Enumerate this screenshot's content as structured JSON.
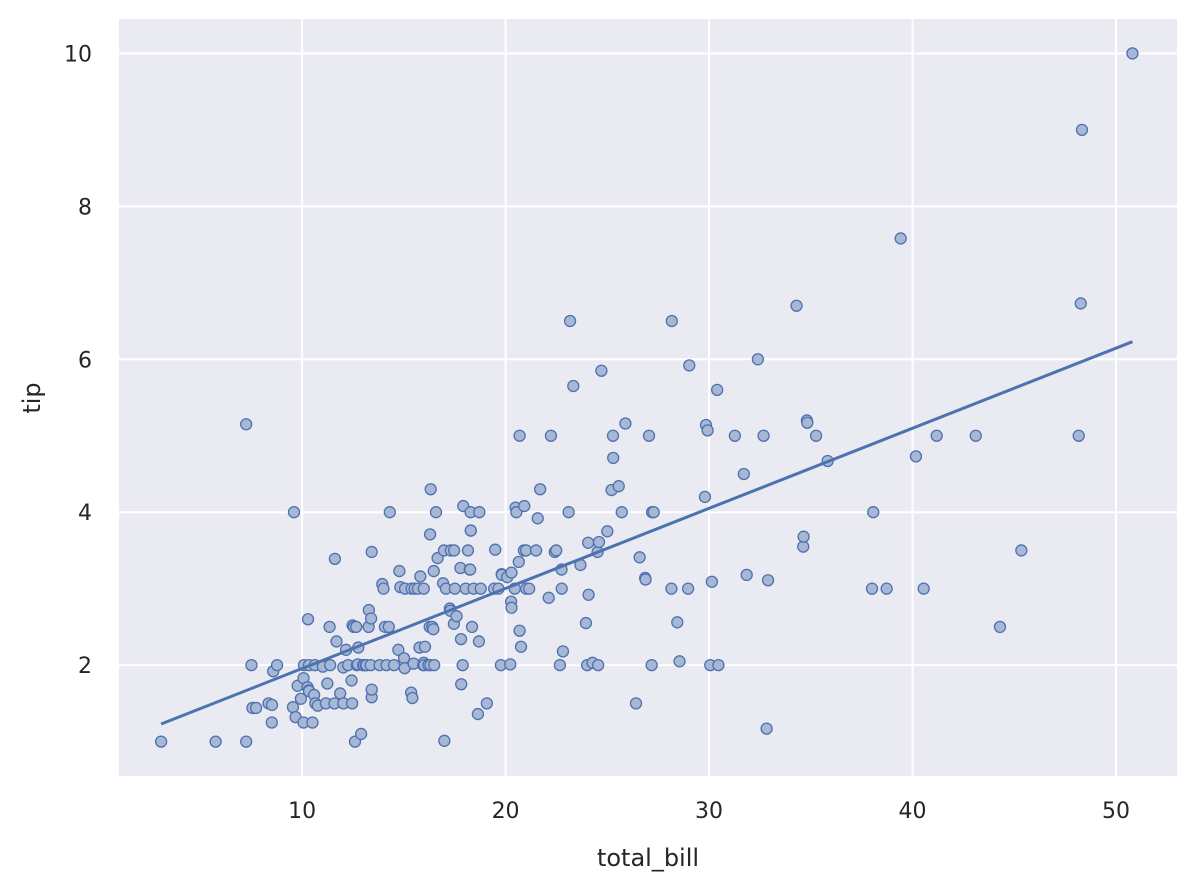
{
  "chart_data": {
    "type": "scatter",
    "xlabel": "total_bill",
    "ylabel": "tip",
    "xlim": [
      1.0,
      53.0
    ],
    "ylim": [
      0.55,
      10.45
    ],
    "x_ticks": [
      10,
      20,
      30,
      40,
      50
    ],
    "y_ticks": [
      2,
      4,
      6,
      8,
      10
    ],
    "grid": true,
    "background_color": "#EAEAF2",
    "grid_color": "#FFFFFF",
    "series_color": "#4C72B0",
    "marker_fill": "#A8B7D4",
    "regression_line": {
      "x": [
        3.07,
        50.81
      ],
      "y": [
        1.23,
        6.23
      ]
    },
    "points": [
      [
        3.07,
        1.0
      ],
      [
        5.75,
        1.0
      ],
      [
        7.25,
        1.0
      ],
      [
        7.25,
        5.15
      ],
      [
        7.51,
        2.0
      ],
      [
        7.56,
        1.44
      ],
      [
        7.74,
        1.44
      ],
      [
        8.35,
        1.5
      ],
      [
        8.51,
        1.25
      ],
      [
        8.52,
        1.48
      ],
      [
        8.58,
        1.92
      ],
      [
        8.77,
        2.0
      ],
      [
        9.55,
        1.45
      ],
      [
        9.6,
        4.0
      ],
      [
        9.68,
        1.32
      ],
      [
        9.78,
        1.73
      ],
      [
        9.94,
        1.56
      ],
      [
        10.07,
        1.83
      ],
      [
        10.07,
        1.25
      ],
      [
        10.09,
        2.0
      ],
      [
        10.27,
        1.71
      ],
      [
        10.29,
        2.6
      ],
      [
        10.33,
        1.67
      ],
      [
        10.34,
        1.66
      ],
      [
        10.34,
        2.0
      ],
      [
        10.51,
        1.25
      ],
      [
        10.59,
        1.61
      ],
      [
        10.63,
        2.0
      ],
      [
        10.65,
        1.5
      ],
      [
        10.77,
        1.47
      ],
      [
        11.02,
        1.98
      ],
      [
        11.17,
        1.5
      ],
      [
        11.24,
        1.76
      ],
      [
        11.35,
        2.5
      ],
      [
        11.38,
        2.0
      ],
      [
        11.59,
        1.5
      ],
      [
        11.61,
        3.39
      ],
      [
        11.69,
        2.31
      ],
      [
        11.87,
        1.63
      ],
      [
        12.02,
        1.97
      ],
      [
        12.03,
        1.5
      ],
      [
        12.16,
        2.2
      ],
      [
        12.26,
        2.0
      ],
      [
        12.43,
        1.8
      ],
      [
        12.46,
        1.5
      ],
      [
        12.48,
        2.52
      ],
      [
        12.54,
        2.5
      ],
      [
        12.6,
        1.0
      ],
      [
        12.66,
        2.5
      ],
      [
        12.69,
        2.0
      ],
      [
        12.74,
        2.01
      ],
      [
        12.76,
        2.23
      ],
      [
        12.9,
        1.1
      ],
      [
        13.0,
        2.0
      ],
      [
        13.03,
        2.0
      ],
      [
        13.13,
        2.0
      ],
      [
        13.16,
        2.0
      ],
      [
        13.27,
        2.5
      ],
      [
        13.28,
        2.72
      ],
      [
        13.37,
        2.0
      ],
      [
        13.39,
        2.61
      ],
      [
        13.42,
        3.48
      ],
      [
        13.42,
        1.58
      ],
      [
        13.42,
        1.68
      ],
      [
        13.81,
        2.0
      ],
      [
        13.94,
        3.06
      ],
      [
        14.0,
        3.0
      ],
      [
        14.07,
        2.5
      ],
      [
        14.15,
        2.0
      ],
      [
        14.26,
        2.5
      ],
      [
        14.31,
        4.0
      ],
      [
        14.52,
        2.0
      ],
      [
        14.73,
        2.2
      ],
      [
        14.78,
        3.23
      ],
      [
        14.83,
        3.02
      ],
      [
        15.01,
        2.09
      ],
      [
        15.04,
        1.96
      ],
      [
        15.06,
        3.0
      ],
      [
        15.36,
        1.64
      ],
      [
        15.38,
        3.0
      ],
      [
        15.42,
        1.57
      ],
      [
        15.48,
        2.02
      ],
      [
        15.53,
        3.0
      ],
      [
        15.69,
        3.0
      ],
      [
        15.77,
        2.23
      ],
      [
        15.81,
        3.16
      ],
      [
        15.95,
        2.0
      ],
      [
        15.98,
        2.03
      ],
      [
        15.98,
        3.0
      ],
      [
        16.0,
        2.0
      ],
      [
        16.04,
        2.24
      ],
      [
        16.21,
        2.0
      ],
      [
        16.27,
        2.5
      ],
      [
        16.29,
        3.71
      ],
      [
        16.31,
        2.0
      ],
      [
        16.32,
        4.3
      ],
      [
        16.4,
        2.5
      ],
      [
        16.45,
        2.47
      ],
      [
        16.47,
        3.23
      ],
      [
        16.49,
        2.0
      ],
      [
        16.58,
        4.0
      ],
      [
        16.66,
        3.4
      ],
      [
        16.93,
        3.07
      ],
      [
        16.97,
        3.5
      ],
      [
        16.99,
        1.01
      ],
      [
        17.07,
        3.0
      ],
      [
        17.26,
        2.74
      ],
      [
        17.29,
        2.71
      ],
      [
        17.31,
        3.5
      ],
      [
        17.46,
        2.54
      ],
      [
        17.47,
        3.5
      ],
      [
        17.51,
        3.0
      ],
      [
        17.59,
        2.64
      ],
      [
        17.78,
        3.27
      ],
      [
        17.81,
        2.34
      ],
      [
        17.82,
        1.75
      ],
      [
        17.89,
        2.0
      ],
      [
        17.92,
        4.08
      ],
      [
        18.04,
        3.0
      ],
      [
        18.15,
        3.5
      ],
      [
        18.24,
        3.25
      ],
      [
        18.26,
        3.25
      ],
      [
        18.28,
        4.0
      ],
      [
        18.29,
        3.76
      ],
      [
        18.29,
        3.76
      ],
      [
        18.35,
        2.5
      ],
      [
        18.43,
        3.0
      ],
      [
        18.64,
        1.36
      ],
      [
        18.69,
        2.31
      ],
      [
        18.71,
        4.0
      ],
      [
        18.78,
        3.0
      ],
      [
        19.08,
        1.5
      ],
      [
        19.44,
        3.0
      ],
      [
        19.49,
        3.51
      ],
      [
        19.65,
        3.0
      ],
      [
        19.77,
        2.0
      ],
      [
        19.81,
        3.19
      ],
      [
        19.82,
        3.18
      ],
      [
        20.08,
        3.15
      ],
      [
        20.23,
        2.01
      ],
      [
        20.27,
        2.83
      ],
      [
        20.29,
        2.75
      ],
      [
        20.29,
        3.21
      ],
      [
        20.45,
        3.0
      ],
      [
        20.49,
        4.06
      ],
      [
        20.53,
        4.0
      ],
      [
        20.65,
        3.35
      ],
      [
        20.69,
        2.45
      ],
      [
        20.69,
        5.0
      ],
      [
        20.76,
        2.24
      ],
      [
        20.9,
        3.5
      ],
      [
        20.92,
        4.08
      ],
      [
        21.01,
        3.0
      ],
      [
        21.01,
        3.5
      ],
      [
        21.16,
        3.0
      ],
      [
        21.5,
        3.5
      ],
      [
        21.58,
        3.92
      ],
      [
        21.7,
        4.3
      ],
      [
        22.12,
        2.88
      ],
      [
        22.23,
        5.0
      ],
      [
        22.42,
        3.48
      ],
      [
        22.49,
        3.5
      ],
      [
        22.67,
        2.0
      ],
      [
        22.75,
        3.25
      ],
      [
        22.76,
        3.0
      ],
      [
        22.82,
        2.18
      ],
      [
        23.1,
        4.0
      ],
      [
        23.17,
        6.5
      ],
      [
        23.33,
        5.65
      ],
      [
        23.68,
        3.31
      ],
      [
        23.95,
        2.55
      ],
      [
        24.01,
        2.0
      ],
      [
        24.06,
        3.6
      ],
      [
        24.08,
        2.92
      ],
      [
        24.27,
        2.03
      ],
      [
        24.52,
        3.48
      ],
      [
        24.55,
        2.0
      ],
      [
        24.59,
        3.61
      ],
      [
        24.71,
        5.85
      ],
      [
        25.0,
        3.75
      ],
      [
        25.21,
        4.29
      ],
      [
        25.28,
        5.0
      ],
      [
        25.29,
        4.71
      ],
      [
        25.56,
        4.34
      ],
      [
        25.71,
        4.0
      ],
      [
        25.89,
        5.16
      ],
      [
        26.41,
        1.5
      ],
      [
        26.59,
        3.41
      ],
      [
        26.86,
        3.14
      ],
      [
        26.88,
        3.12
      ],
      [
        27.05,
        5.0
      ],
      [
        27.18,
        2.0
      ],
      [
        27.2,
        4.0
      ],
      [
        27.28,
        4.0
      ],
      [
        28.15,
        3.0
      ],
      [
        28.17,
        6.5
      ],
      [
        28.44,
        2.56
      ],
      [
        28.55,
        2.05
      ],
      [
        28.97,
        3.0
      ],
      [
        29.03,
        5.92
      ],
      [
        29.8,
        4.2
      ],
      [
        29.85,
        5.14
      ],
      [
        29.93,
        5.07
      ],
      [
        30.06,
        2.0
      ],
      [
        30.14,
        3.09
      ],
      [
        30.4,
        5.6
      ],
      [
        30.46,
        2.0
      ],
      [
        31.27,
        5.0
      ],
      [
        31.71,
        4.5
      ],
      [
        31.85,
        3.18
      ],
      [
        32.4,
        6.0
      ],
      [
        32.68,
        5.0
      ],
      [
        32.83,
        1.17
      ],
      [
        32.9,
        3.11
      ],
      [
        34.3,
        6.7
      ],
      [
        34.63,
        3.55
      ],
      [
        34.65,
        3.68
      ],
      [
        34.81,
        5.2
      ],
      [
        34.83,
        5.17
      ],
      [
        35.26,
        5.0
      ],
      [
        35.83,
        4.67
      ],
      [
        38.01,
        3.0
      ],
      [
        38.07,
        4.0
      ],
      [
        38.73,
        3.0
      ],
      [
        39.42,
        7.58
      ],
      [
        40.17,
        4.73
      ],
      [
        40.55,
        3.0
      ],
      [
        41.19,
        5.0
      ],
      [
        43.11,
        5.0
      ],
      [
        44.3,
        2.5
      ],
      [
        45.35,
        3.5
      ],
      [
        48.17,
        5.0
      ],
      [
        48.27,
        6.73
      ],
      [
        48.33,
        9.0
      ],
      [
        50.81,
        10.0
      ]
    ]
  }
}
